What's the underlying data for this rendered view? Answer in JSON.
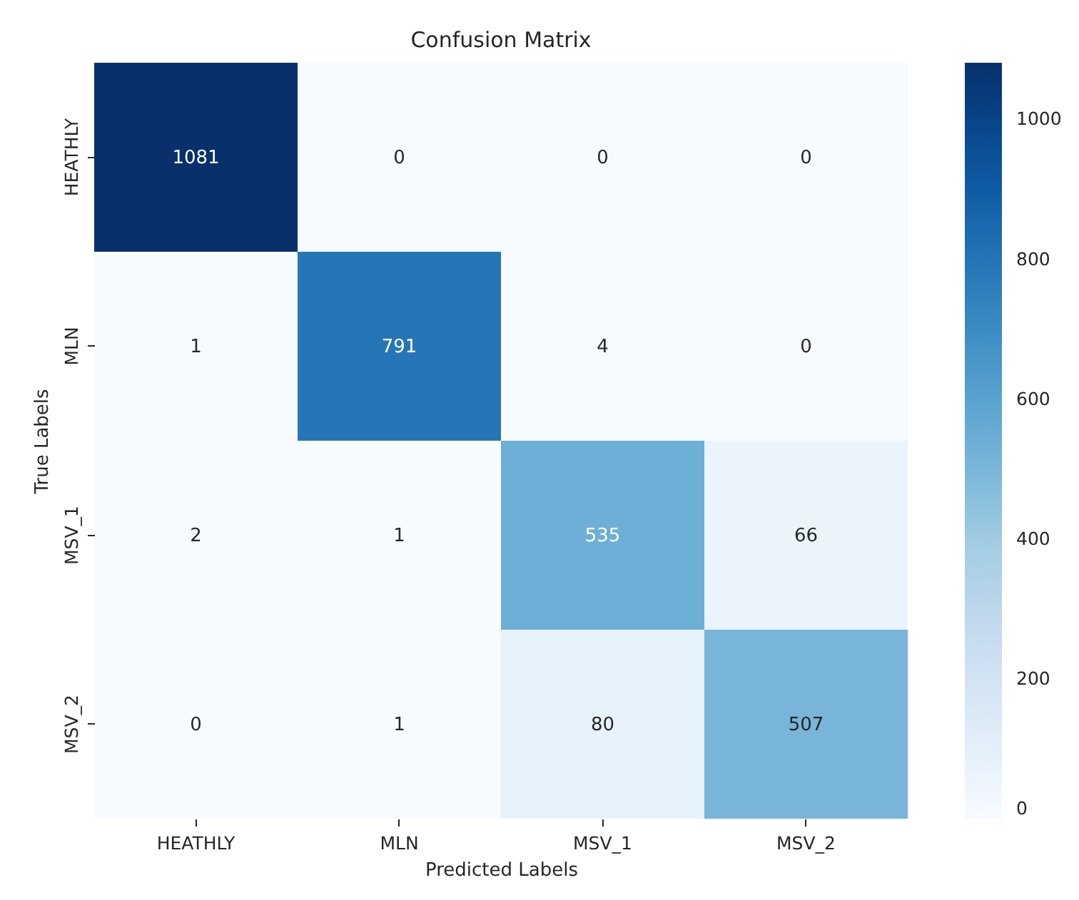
{
  "chart_data": {
    "type": "heatmap",
    "title": "Confusion Matrix",
    "xlabel": "Predicted Labels",
    "ylabel": "True Labels",
    "categories": [
      "HEATHLY",
      "MLN",
      "MSV_1",
      "MSV_2"
    ],
    "y_categories": [
      "HEATHLY",
      "MLN",
      "MSV_1",
      "MSV_2"
    ],
    "cells": [
      [
        1081,
        0,
        0,
        0
      ],
      [
        1,
        791,
        4,
        0
      ],
      [
        2,
        1,
        535,
        66
      ],
      [
        0,
        1,
        80,
        507
      ]
    ],
    "clim": [
      0,
      1081
    ],
    "cticks": [
      0,
      200,
      400,
      600,
      800,
      1000
    ],
    "data_labels": true
  }
}
